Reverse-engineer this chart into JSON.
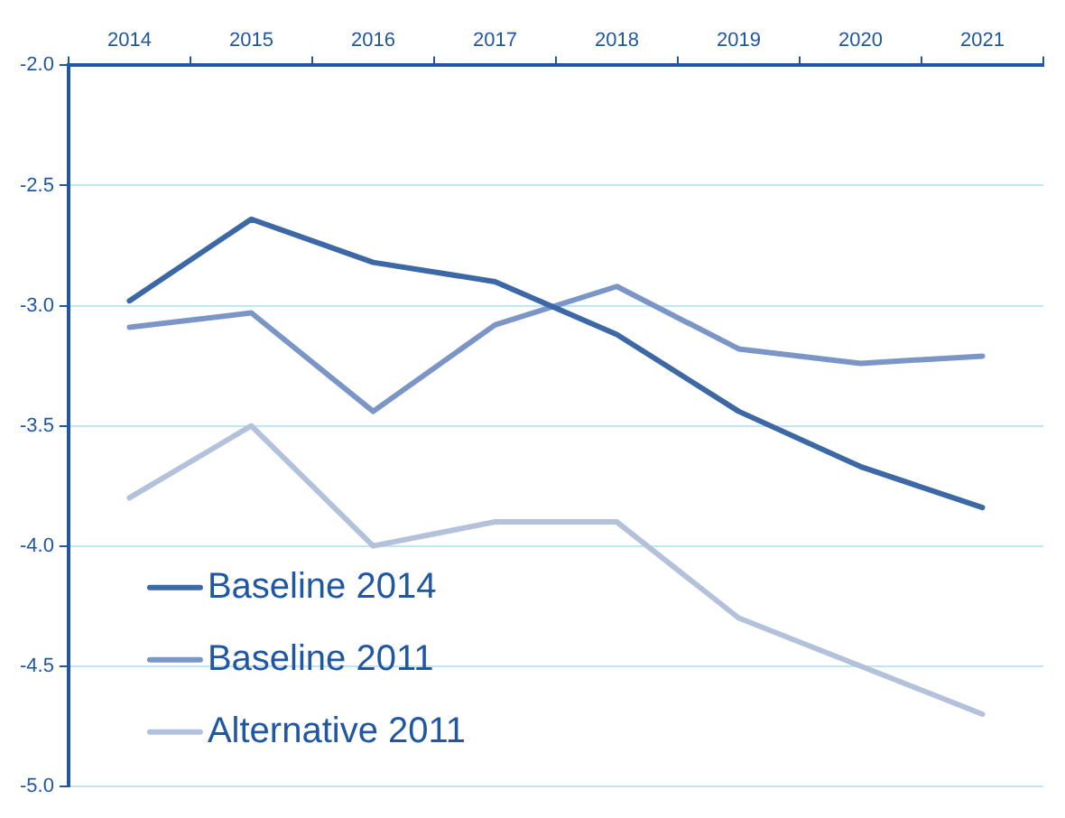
{
  "chart_data": {
    "type": "line",
    "categories": [
      "2014",
      "2015",
      "2016",
      "2017",
      "2018",
      "2019",
      "2020",
      "2021"
    ],
    "series": [
      {
        "name": "Baseline 2014",
        "color": "#3c68a6",
        "values": [
          -2.98,
          -2.64,
          -2.82,
          -2.9,
          -3.12,
          -3.44,
          -3.67,
          -3.84
        ]
      },
      {
        "name": "Baseline 2011",
        "color": "#7b96c6",
        "values": [
          -3.09,
          -3.03,
          -3.44,
          -3.08,
          -2.92,
          -3.18,
          -3.24,
          -3.21
        ]
      },
      {
        "name": "Alternative 2011",
        "color": "#b3c1da",
        "values": [
          -3.8,
          -3.5,
          -4.0,
          -3.9,
          -3.9,
          -4.3,
          -4.5,
          -4.7
        ]
      }
    ],
    "ylim": [
      -5,
      -2
    ],
    "yticks": [
      {
        "value": -5,
        "label": "-5.0"
      },
      -4.5,
      {
        "value": -4,
        "label": "-4.0"
      },
      -3.5,
      {
        "value": -3,
        "label": "-3.0"
      },
      -2.5,
      {
        "value": -2,
        "label": "-2.0"
      }
    ],
    "grid": "y",
    "legend": "bottom left",
    "marker": "none",
    "line_style": "solid"
  }
}
